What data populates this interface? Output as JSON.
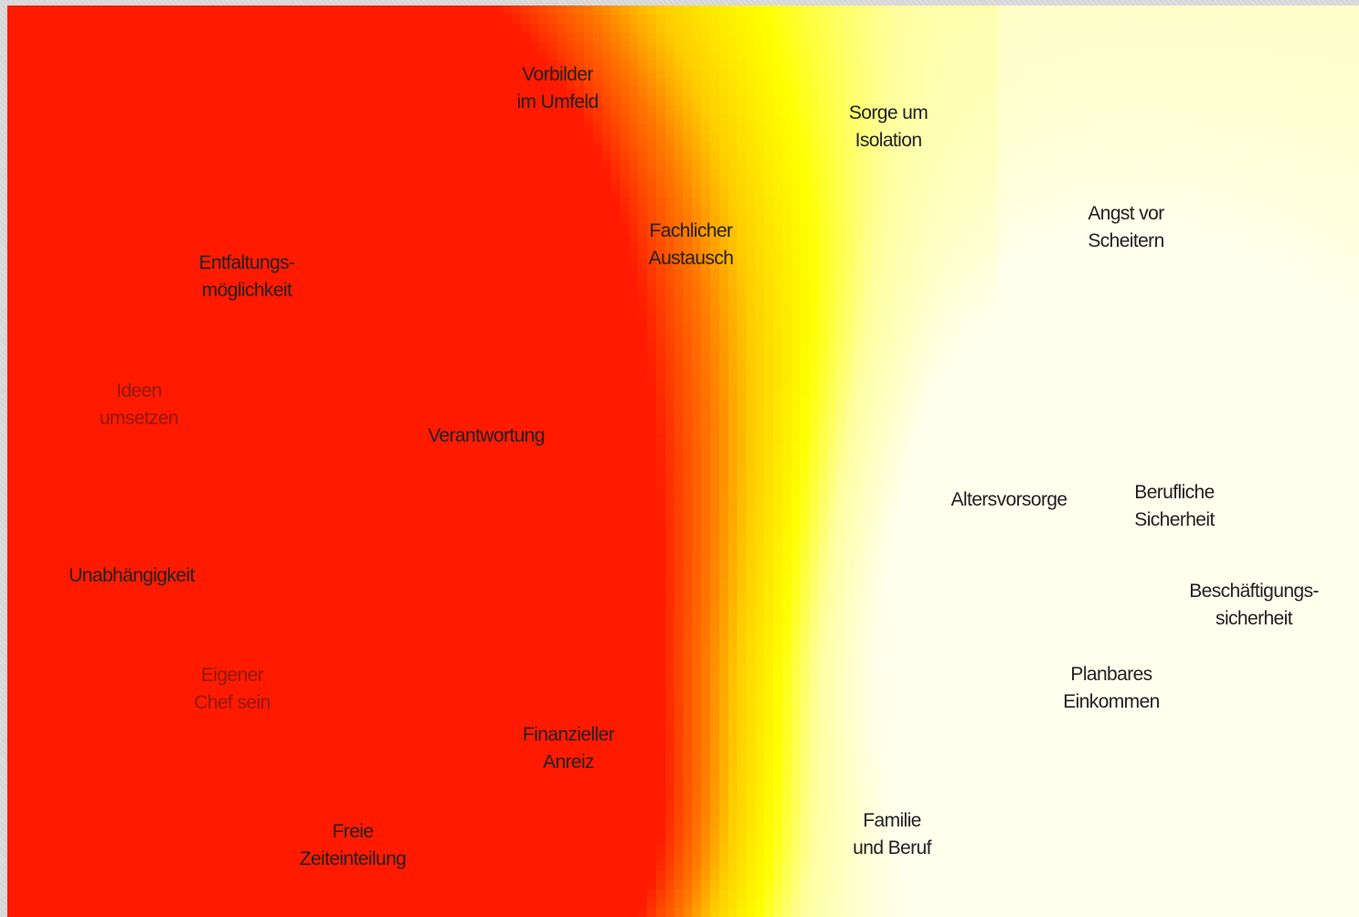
{
  "diagram": {
    "colors": {
      "hot": "#ff1a00",
      "warm": "#ff7a00",
      "mid": "#ffcc00",
      "yellow": "#ffff00",
      "cool": "#ffffee"
    },
    "labels": [
      {
        "id": "vorbilder",
        "lines": [
          "Vorbilder",
          "im Umfeld"
        ],
        "tone": "dark"
      },
      {
        "id": "sorge-isolation",
        "lines": [
          "Sorge um",
          "Isolation"
        ],
        "tone": "dark"
      },
      {
        "id": "angst-scheitern",
        "lines": [
          "Angst vor",
          "Scheitern"
        ],
        "tone": "dark"
      },
      {
        "id": "fachlicher-austausch",
        "lines": [
          "Fachlicher",
          "Austausch"
        ],
        "tone": "dark"
      },
      {
        "id": "entfaltung",
        "lines": [
          "Entfaltungs-",
          "möglichkeit"
        ],
        "tone": "dark"
      },
      {
        "id": "ideen",
        "lines": [
          "Ideen",
          "umsetzen"
        ],
        "tone": "hot"
      },
      {
        "id": "verantwortung",
        "lines": [
          "Verantwortung"
        ],
        "tone": "dark"
      },
      {
        "id": "altersvorsorge",
        "lines": [
          "Altersvorsorge"
        ],
        "tone": "dark"
      },
      {
        "id": "berufliche-sicherheit",
        "lines": [
          "Berufliche",
          "Sicherheit"
        ],
        "tone": "dark"
      },
      {
        "id": "unabhaengigkeit",
        "lines": [
          "Unabhängigkeit"
        ],
        "tone": "dark"
      },
      {
        "id": "beschaeftigung",
        "lines": [
          "Beschäftigungs-",
          "sicherheit"
        ],
        "tone": "dark"
      },
      {
        "id": "eigener-chef",
        "lines": [
          "Eigener",
          "Chef sein"
        ],
        "tone": "hot"
      },
      {
        "id": "planbares-einkommen",
        "lines": [
          "Planbares",
          "Einkommen"
        ],
        "tone": "dark"
      },
      {
        "id": "finanzieller-anreiz",
        "lines": [
          "Finanzieller",
          "Anreiz"
        ],
        "tone": "dark"
      },
      {
        "id": "familie-beruf",
        "lines": [
          "Familie",
          "und Beruf"
        ],
        "tone": "dark"
      },
      {
        "id": "freie-zeit",
        "lines": [
          "Freie",
          "Zeiteinteilung"
        ],
        "tone": "dark"
      }
    ]
  }
}
